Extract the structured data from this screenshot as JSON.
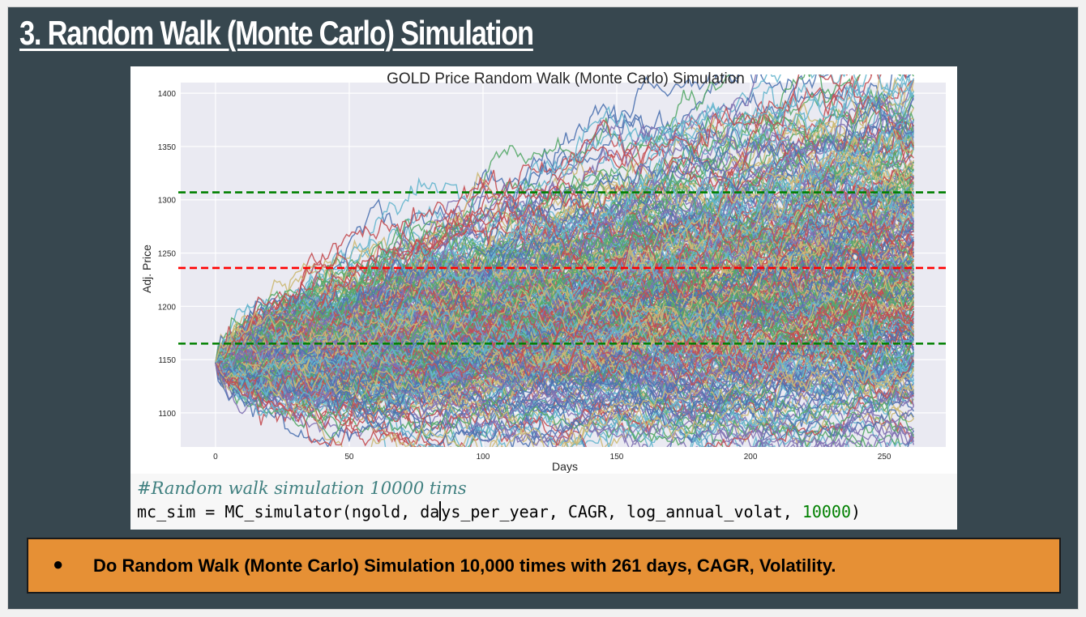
{
  "slide": {
    "title": "3. Random Walk (Monte Carlo) Simulation",
    "background_color": "#37474f"
  },
  "chart_data": {
    "type": "line",
    "title": "GOLD Price Random Walk (Monte Carlo) Simulation",
    "xlabel": "Days",
    "ylabel": "Adj. Price",
    "xlim": [
      -13,
      273
    ],
    "ylim": [
      1068,
      1410
    ],
    "x_ticks": [
      0,
      50,
      100,
      150,
      200,
      250
    ],
    "y_ticks": [
      1100,
      1150,
      1200,
      1250,
      1300,
      1350,
      1400
    ],
    "grid": true,
    "legend": "none",
    "start_value": 1147,
    "days": 261,
    "num_simulations": 10000,
    "approx_final_range": [
      1113,
      1398
    ],
    "series_colors": [
      "#4c72b0",
      "#55a868",
      "#c44e52",
      "#8172b2",
      "#ccb974",
      "#64b5cd"
    ],
    "horizontal_lines": [
      {
        "y": 1307,
        "color": "#008000",
        "style": "dashed"
      },
      {
        "y": 1236,
        "color": "#ff0000",
        "style": "dashed"
      },
      {
        "y": 1165,
        "color": "#008000",
        "style": "dashed"
      }
    ]
  },
  "code": {
    "comment": "#Random walk simulation 10000 tims",
    "line_prefix": "mc_sim = MC_simulator(ngold, da",
    "line_middle": "ys_per_year, CAGR, log_annual_volat, ",
    "line_number": "10000",
    "line_suffix": ")"
  },
  "callout": {
    "bullet": "●",
    "text": "Do Random Walk (Monte Carlo) Simulation 10,000 times with 261 days, CAGR, Volatility."
  }
}
